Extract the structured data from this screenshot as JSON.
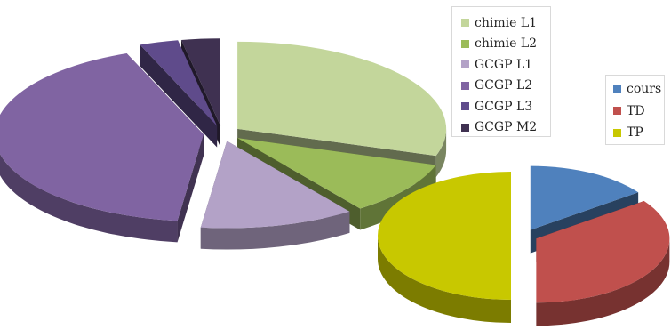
{
  "chart_data": [
    {
      "type": "pie",
      "title": "",
      "style": "3d-exploded",
      "legend_position": "top-right",
      "slices": [
        {
          "name": "chimie L1",
          "value": 30,
          "color": "#c3d69b"
        },
        {
          "name": "chimie L2",
          "value": 10,
          "color": "#9bbb59"
        },
        {
          "name": "GCGP L1",
          "value": 12,
          "color": "#b3a2c7"
        },
        {
          "name": "GCGP L2",
          "value": 42,
          "color": "#8064a2"
        },
        {
          "name": "GCGP L3",
          "value": 3,
          "color": "#5f4b8b"
        },
        {
          "name": "GCGP M2",
          "value": 3,
          "color": "#3f3151"
        }
      ]
    },
    {
      "type": "pie",
      "title": "",
      "style": "3d-exploded",
      "legend_position": "right",
      "slices": [
        {
          "name": "cours",
          "value": 15,
          "color": "#4f81bd"
        },
        {
          "name": "TD",
          "value": 35,
          "color": "#c0504d"
        },
        {
          "name": "TP",
          "value": 50,
          "color": "#c8c800"
        }
      ]
    }
  ]
}
